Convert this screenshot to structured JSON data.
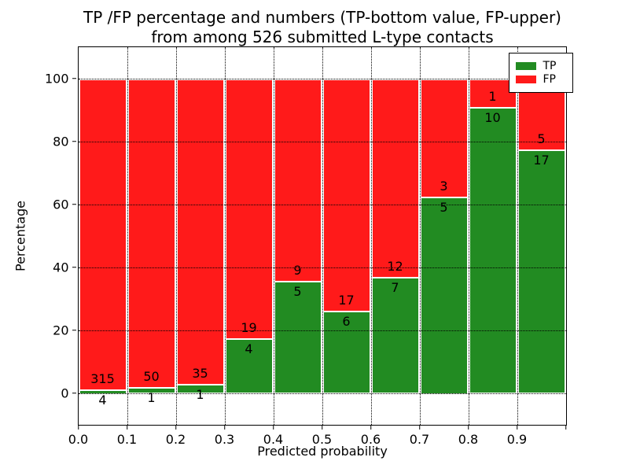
{
  "figure": {
    "title_line1": "TP /FP percentage and numbers (TP-bottom value, FP-upper)",
    "title_line2": "from among 526 submitted L-type contacts"
  },
  "chart_data": {
    "type": "bar",
    "stacked": true,
    "title": "TP /FP percentage and numbers (TP-bottom value, FP-upper)\nfrom among 526 submitted L-type contacts",
    "xlabel": "Predicted probability",
    "ylabel": "Percentage",
    "xlim": [
      0.0,
      1.0
    ],
    "ylim": [
      -10,
      110
    ],
    "x_tick_labels": [
      "0.0",
      "0.1",
      "0.2",
      "0.3",
      "0.4",
      "0.5",
      "0.6",
      "0.7",
      "0.8",
      "0.9"
    ],
    "y_tick_values": [
      0,
      20,
      40,
      60,
      80,
      100
    ],
    "grid": {
      "style": "dotted",
      "color": "#000000",
      "axes": "both",
      "drawn_above_bars": true
    },
    "bin_edges": [
      0.0,
      0.1,
      0.2,
      0.3,
      0.4,
      0.5,
      0.6,
      0.7,
      0.8,
      0.9,
      1.0
    ],
    "categories": [
      "0.0-0.1",
      "0.1-0.2",
      "0.2-0.3",
      "0.3-0.4",
      "0.4-0.5",
      "0.5-0.6",
      "0.6-0.7",
      "0.7-0.8",
      "0.8-0.9",
      "0.9-1.0"
    ],
    "series": [
      {
        "name": "TP",
        "counts": [
          4,
          1,
          1,
          4,
          5,
          6,
          7,
          5,
          10,
          17
        ],
        "percent": [
          1.25,
          1.96,
          2.78,
          17.39,
          35.71,
          26.09,
          36.84,
          62.5,
          90.91,
          77.27
        ]
      },
      {
        "name": "FP",
        "counts": [
          315,
          50,
          35,
          19,
          9,
          17,
          12,
          3,
          1,
          5
        ],
        "percent": [
          98.75,
          98.04,
          97.22,
          82.61,
          64.29,
          73.91,
          63.16,
          37.5,
          9.09,
          22.73
        ]
      }
    ],
    "total_contacts": 526,
    "legend": {
      "position": "upper right",
      "entries": [
        {
          "label": "TP",
          "color": "#228B22"
        },
        {
          "label": "FP",
          "color": "#ff1a1a"
        }
      ]
    },
    "colors": {
      "tp": "#228B22",
      "fp": "#ff1a1a",
      "bar_edge": "#ffffff",
      "axes": "#000000",
      "background": "#ffffff"
    }
  }
}
